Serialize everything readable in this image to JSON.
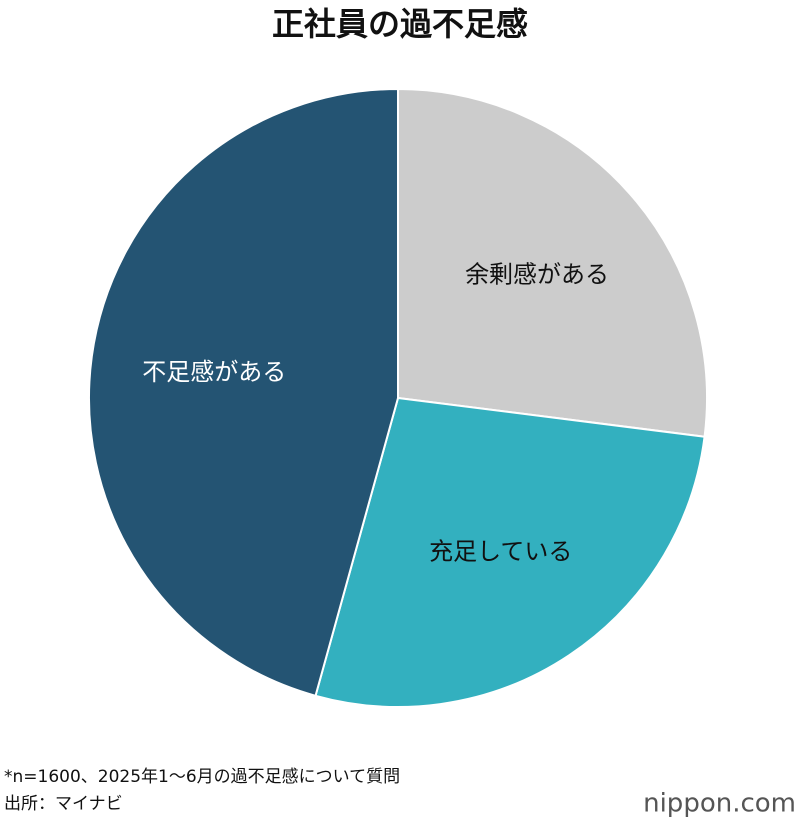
{
  "chart_data": {
    "type": "pie",
    "title": "正社員の過不足感",
    "categories": [
      "余剰感がある",
      "充足している",
      "不足感がある"
    ],
    "values": [
      27,
      27.3,
      45.7
    ],
    "colors": [
      "#cccccc",
      "#33b0bf",
      "#245473"
    ],
    "label_colors": [
      "#111111",
      "#111111",
      "#ffffff"
    ],
    "note": "*n=1600、2025年1～6月の過不足感について質問",
    "source": "出所：マイナビ",
    "logo": "nippon.com"
  }
}
